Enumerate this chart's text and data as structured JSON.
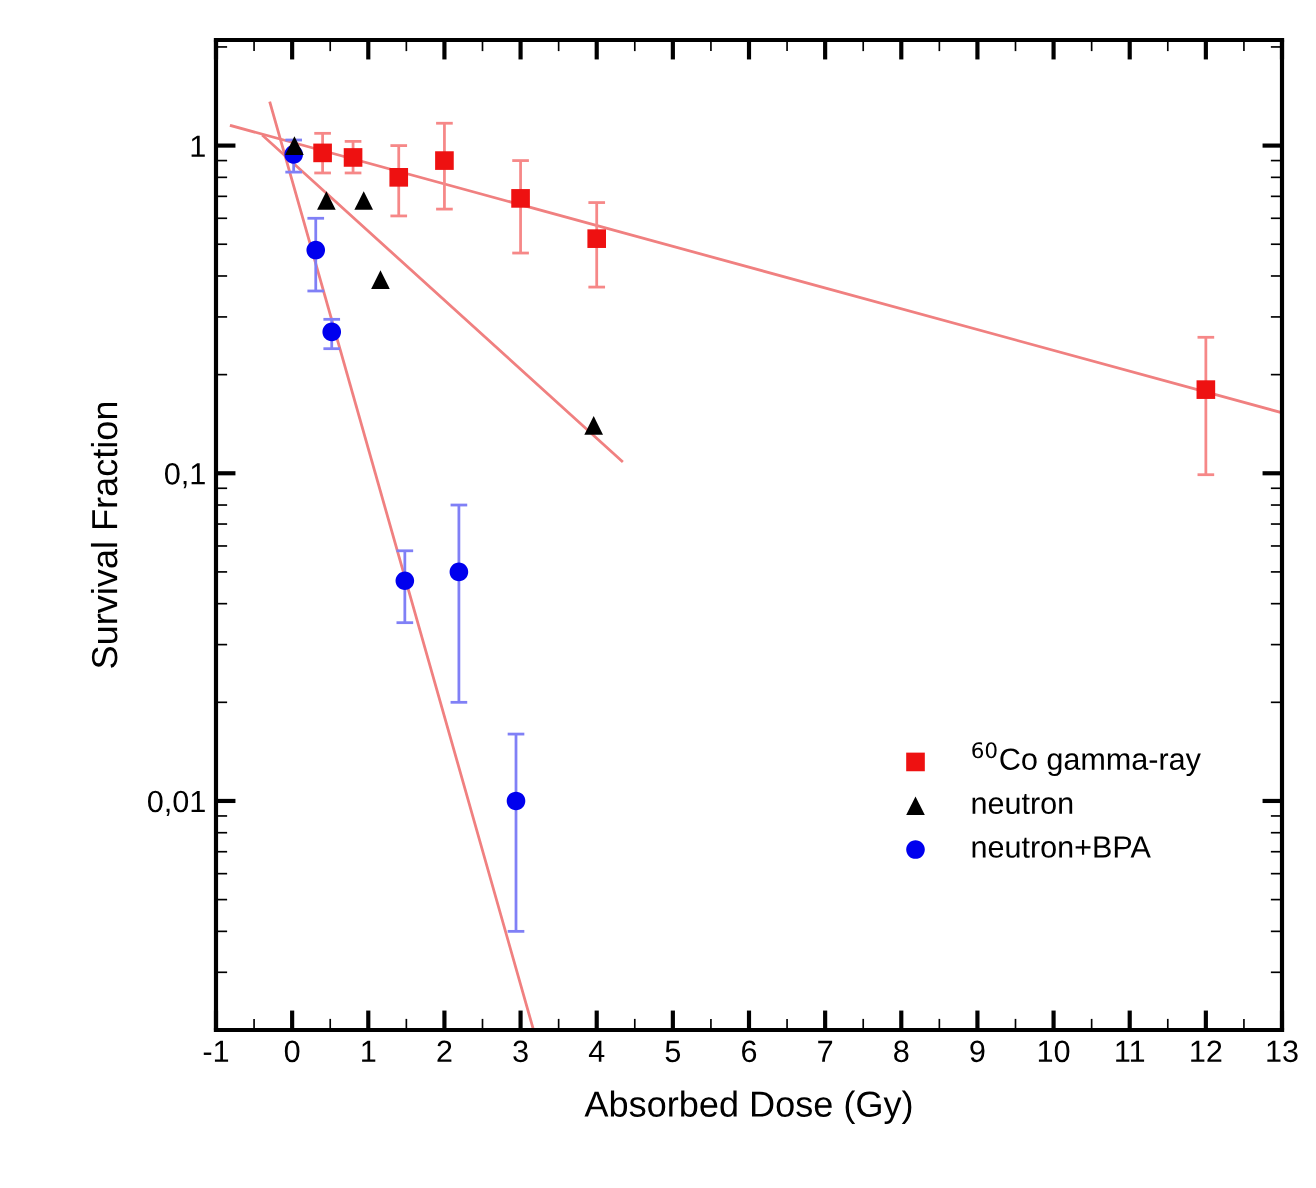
{
  "chart_data": {
    "type": "scatter",
    "xlabel": "Absorbed Dose (Gy)",
    "ylabel": "Survival Fraction",
    "xlim": [
      -1,
      13
    ],
    "ylim": [
      0.002,
      2.1
    ],
    "log": "y",
    "xticks": [
      -1,
      0,
      1,
      2,
      3,
      4,
      5,
      6,
      7,
      8,
      9,
      10,
      11,
      12,
      13
    ],
    "yticks": [
      {
        "value": 0.01,
        "label": "0,01"
      },
      {
        "value": 0.1,
        "label": "0,1"
      },
      1
    ],
    "grid": false,
    "legend": "bottom right",
    "series": [
      {
        "name": "$^{60}$Co gamma-ray",
        "marker": "square",
        "color": "#ee1111",
        "x": [
          0.4,
          0.8,
          1.4,
          2,
          3,
          4,
          12
        ],
        "values": [
          0.95,
          0.92,
          0.8,
          0.9,
          0.69,
          0.52,
          0.18
        ],
        "errors": [
          [
            0.825,
            1.09
          ],
          [
            0.825,
            1.03
          ],
          [
            0.61,
            1.0
          ],
          [
            0.64,
            1.17
          ],
          [
            0.47,
            0.9
          ],
          [
            0.37,
            0.67
          ],
          [
            0.099,
            0.26
          ]
        ]
      },
      {
        "name": "neutron",
        "marker": "triangle",
        "color": "#000000",
        "x": [
          0.03,
          0.45,
          0.94,
          1.16,
          3.96
        ],
        "values": [
          1.0,
          0.68,
          0.68,
          0.39,
          0.14
        ]
      },
      {
        "name": "neutron+BPA",
        "marker": "circle",
        "color": "#0000ee",
        "x": [
          0.02,
          0.31,
          0.52,
          1.48,
          2.19,
          2.94
        ],
        "values": [
          0.94,
          0.48,
          0.27,
          0.047,
          0.05,
          0.01
        ],
        "errors": [
          [
            0.83,
            1.04
          ],
          [
            0.36,
            0.6
          ],
          [
            0.24,
            0.295
          ],
          [
            0.035,
            0.058
          ],
          [
            0.02,
            0.08
          ],
          [
            0.004,
            0.016
          ]
        ]
      },
      {
        "type": "line",
        "color": "#f08080",
        "x": [
          -0.8,
          13
        ],
        "values": [
          1.15,
          0.153
        ]
      },
      {
        "type": "line",
        "color": "#f08080",
        "x": [
          -0.38,
          4.33
        ],
        "values": [
          1.07,
          0.109
        ]
      },
      {
        "type": "line",
        "color": "#f08080",
        "x": [
          -0.29,
          3.17
        ],
        "values": [
          1.35,
          0.002
        ]
      }
    ]
  }
}
